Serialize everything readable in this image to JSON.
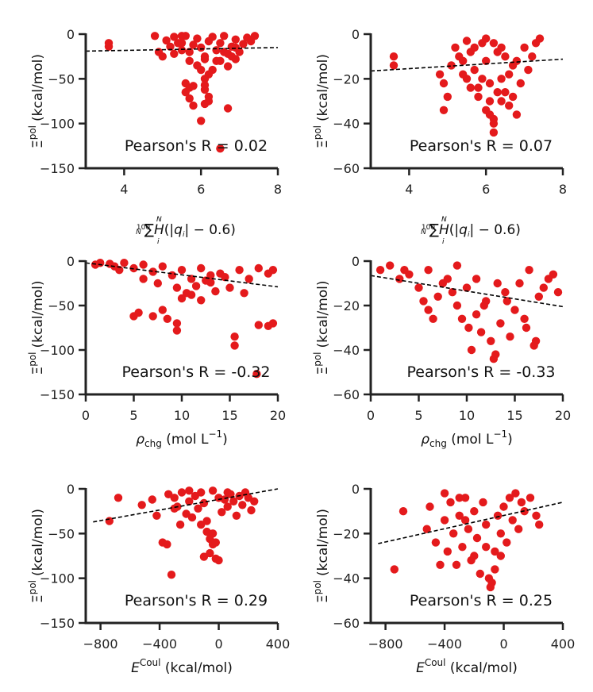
{
  "figure": {
    "ylabel": "Ξpol (kcal/mol)",
    "ylabel_main": "Ξ",
    "ylabel_sup": "pol",
    "ylabel_unit": "(kcal/mol)",
    "point_color": "#e41a1c",
    "trend_color": "#000000"
  },
  "chart_data": [
    {
      "type": "scatter",
      "panel": "row1-left",
      "xlim": [
        3,
        8
      ],
      "ylim": [
        -150,
        0
      ],
      "xticks": [
        4,
        6,
        8
      ],
      "yticks": [
        0,
        -50,
        -100,
        -150
      ],
      "xlabel": "100/N Σ_i^N H(|q_i| − 0.6)",
      "xlabel_type": "heaviside",
      "ylabel": "Ξpol (kcal/mol)",
      "annotation": "Pearson's R = 0.02",
      "trend": [
        [
          3,
          -19
        ],
        [
          8,
          -15
        ]
      ],
      "points": [
        [
          3.6,
          -10
        ],
        [
          3.6,
          -14
        ],
        [
          4.8,
          -2
        ],
        [
          4.9,
          -20
        ],
        [
          5.0,
          -25
        ],
        [
          5.1,
          -7
        ],
        [
          5.2,
          -14
        ],
        [
          5.3,
          -3
        ],
        [
          5.4,
          -10
        ],
        [
          5.5,
          -18
        ],
        [
          5.6,
          -2
        ],
        [
          5.7,
          -20
        ],
        [
          5.8,
          -12
        ],
        [
          5.9,
          -5
        ],
        [
          6.0,
          -15
        ],
        [
          6.1,
          -25
        ],
        [
          6.2,
          -8
        ],
        [
          6.3,
          -3
        ],
        [
          6.4,
          -18
        ],
        [
          6.5,
          -10
        ],
        [
          6.6,
          -2
        ],
        [
          6.7,
          -22
        ],
        [
          6.8,
          -14
        ],
        [
          6.9,
          -6
        ],
        [
          7.0,
          -20
        ],
        [
          7.1,
          -11
        ],
        [
          7.2,
          -4
        ],
        [
          7.3,
          -8
        ],
        [
          7.4,
          -2
        ],
        [
          5.5,
          -2
        ],
        [
          5.7,
          -30
        ],
        [
          5.9,
          -35
        ],
        [
          6.1,
          -28
        ],
        [
          6.3,
          -40
        ],
        [
          6.5,
          -30
        ],
        [
          6.7,
          -36
        ],
        [
          6.9,
          -28
        ],
        [
          6.4,
          -30
        ],
        [
          5.6,
          -55
        ],
        [
          5.7,
          -60
        ],
        [
          5.8,
          -58
        ],
        [
          5.6,
          -65
        ],
        [
          5.7,
          -72
        ],
        [
          5.8,
          -80
        ],
        [
          6.1,
          -50
        ],
        [
          6.1,
          -57
        ],
        [
          6.1,
          -62
        ],
        [
          6.2,
          -70
        ],
        [
          6.2,
          -75
        ],
        [
          6.1,
          -78
        ],
        [
          6.7,
          -83
        ],
        [
          6.0,
          -97
        ],
        [
          6.5,
          -128
        ],
        [
          5.5,
          -10
        ],
        [
          6.6,
          -20
        ],
        [
          6.8,
          -25
        ],
        [
          6.2,
          -45
        ],
        [
          6.0,
          -40
        ],
        [
          5.3,
          -22
        ],
        [
          6.9,
          -15
        ]
      ]
    },
    {
      "type": "scatter",
      "panel": "row1-right",
      "xlim": [
        3,
        8
      ],
      "ylim": [
        -60,
        0
      ],
      "xticks": [
        4,
        6,
        8
      ],
      "yticks": [
        0,
        -20,
        -40,
        -60
      ],
      "xlabel": "100/N Σ_i^N H(|q_i| − 0.6)",
      "xlabel_type": "heaviside",
      "ylabel": "Ξpol (kcal/mol)",
      "annotation": "Pearson's R = 0.07",
      "trend": [
        [
          3,
          -16.5
        ],
        [
          8,
          -11.2
        ]
      ],
      "points": [
        [
          3.6,
          -10
        ],
        [
          3.6,
          -14
        ],
        [
          4.8,
          -18
        ],
        [
          4.9,
          -22
        ],
        [
          4.9,
          -34
        ],
        [
          5.0,
          -28
        ],
        [
          5.1,
          -14
        ],
        [
          5.2,
          -6
        ],
        [
          5.3,
          -10
        ],
        [
          5.4,
          -12
        ],
        [
          5.5,
          -3
        ],
        [
          5.5,
          -20
        ],
        [
          5.6,
          -8
        ],
        [
          5.7,
          -16
        ],
        [
          5.8,
          -24
        ],
        [
          5.9,
          -4
        ],
        [
          6.0,
          -12
        ],
        [
          6.1,
          -30
        ],
        [
          6.1,
          -36
        ],
        [
          6.2,
          -40
        ],
        [
          6.2,
          -44
        ],
        [
          6.3,
          -8
        ],
        [
          6.4,
          -20
        ],
        [
          6.5,
          -26
        ],
        [
          6.6,
          -32
        ],
        [
          6.7,
          -14
        ],
        [
          6.8,
          -36
        ],
        [
          6.9,
          -22
        ],
        [
          7.0,
          -6
        ],
        [
          7.1,
          -16
        ],
        [
          7.2,
          -10
        ],
        [
          7.3,
          -4
        ],
        [
          7.4,
          -2
        ],
        [
          5.4,
          -18
        ],
        [
          5.6,
          -24
        ],
        [
          5.8,
          -28
        ],
        [
          6.0,
          -34
        ],
        [
          6.2,
          -38
        ],
        [
          6.4,
          -30
        ],
        [
          6.6,
          -18
        ],
        [
          6.8,
          -12
        ],
        [
          5.9,
          -20
        ],
        [
          6.1,
          -22
        ],
        [
          6.3,
          -26
        ],
        [
          6.5,
          -10
        ],
        [
          6.7,
          -28
        ],
        [
          5.7,
          -6
        ],
        [
          6.0,
          -2
        ],
        [
          6.2,
          -4
        ],
        [
          6.4,
          -6
        ]
      ]
    },
    {
      "type": "scatter",
      "panel": "row2-left",
      "xlim": [
        0,
        20
      ],
      "ylim": [
        -150,
        0
      ],
      "xticks": [
        0,
        5,
        10,
        15,
        20
      ],
      "yticks": [
        0,
        -50,
        -100,
        -150
      ],
      "xlabel": "ρchg (mol L−1)",
      "xlabel_type": "rho",
      "ylabel": "Ξpol (kcal/mol)",
      "annotation": "Pearson's R = -0.32",
      "trend": [
        [
          0,
          -2
        ],
        [
          20,
          -29
        ]
      ],
      "points": [
        [
          1.0,
          -4
        ],
        [
          1.5,
          -2
        ],
        [
          2.5,
          -3
        ],
        [
          3.0,
          -6
        ],
        [
          4.0,
          -2
        ],
        [
          5.0,
          -8
        ],
        [
          6.0,
          -4
        ],
        [
          7.0,
          -12
        ],
        [
          8.0,
          -6
        ],
        [
          9.0,
          -16
        ],
        [
          10.0,
          -10
        ],
        [
          11.0,
          -20
        ],
        [
          12.0,
          -8
        ],
        [
          13.0,
          -24
        ],
        [
          14.0,
          -14
        ],
        [
          15.0,
          -30
        ],
        [
          16.0,
          -10
        ],
        [
          17.0,
          -20
        ],
        [
          18.0,
          -8
        ],
        [
          19.0,
          -14
        ],
        [
          19.5,
          -10
        ],
        [
          9.5,
          -30
        ],
        [
          10.5,
          -36
        ],
        [
          11.5,
          -28
        ],
        [
          12.5,
          -22
        ],
        [
          13.5,
          -34
        ],
        [
          14.5,
          -18
        ],
        [
          16.5,
          -36
        ],
        [
          5.0,
          -62
        ],
        [
          5.5,
          -58
        ],
        [
          7.0,
          -62
        ],
        [
          8.0,
          -55
        ],
        [
          8.5,
          -65
        ],
        [
          9.5,
          -70
        ],
        [
          9.5,
          -78
        ],
        [
          15.5,
          -85
        ],
        [
          15.5,
          -95
        ],
        [
          18.0,
          -72
        ],
        [
          19.0,
          -73
        ],
        [
          19.5,
          -70
        ],
        [
          17.8,
          -127
        ],
        [
          10.0,
          -42
        ],
        [
          11.0,
          -38
        ],
        [
          6.0,
          -20
        ],
        [
          7.5,
          -25
        ],
        [
          12.0,
          -44
        ],
        [
          13.0,
          -16
        ],
        [
          3.5,
          -10
        ]
      ]
    },
    {
      "type": "scatter",
      "panel": "row2-right",
      "xlim": [
        0,
        20
      ],
      "ylim": [
        -60,
        0
      ],
      "xticks": [
        0,
        5,
        10,
        15,
        20
      ],
      "yticks": [
        0,
        -20,
        -40,
        -60
      ],
      "xlabel": "ρchg (mol L−1)",
      "xlabel_type": "rho",
      "ylabel": "Ξpol (kcal/mol)",
      "annotation": "Pearson's R = -0.33",
      "trend": [
        [
          0,
          -6.5
        ],
        [
          20,
          -20.5
        ]
      ],
      "points": [
        [
          1.0,
          -4
        ],
        [
          2.0,
          -2
        ],
        [
          3.0,
          -8
        ],
        [
          4.0,
          -6
        ],
        [
          5.0,
          -12
        ],
        [
          6.0,
          -4
        ],
        [
          6.5,
          -26
        ],
        [
          7.0,
          -16
        ],
        [
          8.0,
          -8
        ],
        [
          9.0,
          -20
        ],
        [
          10.0,
          -12
        ],
        [
          10.5,
          -40
        ],
        [
          11.0,
          -24
        ],
        [
          11.5,
          -32
        ],
        [
          12.0,
          -18
        ],
        [
          12.5,
          -36
        ],
        [
          12.8,
          -44
        ],
        [
          13.0,
          -42
        ],
        [
          13.5,
          -28
        ],
        [
          14.0,
          -14
        ],
        [
          14.5,
          -34
        ],
        [
          15.0,
          -22
        ],
        [
          15.5,
          -10
        ],
        [
          16.0,
          -26
        ],
        [
          16.5,
          -4
        ],
        [
          17.0,
          -38
        ],
        [
          17.2,
          -36
        ],
        [
          17.5,
          -16
        ],
        [
          18.0,
          -12
        ],
        [
          18.5,
          -8
        ],
        [
          19.0,
          -6
        ],
        [
          19.5,
          -14
        ],
        [
          8.5,
          -14
        ],
        [
          9.5,
          -26
        ],
        [
          10.2,
          -30
        ],
        [
          11.8,
          -20
        ],
        [
          13.2,
          -10
        ],
        [
          5.5,
          -18
        ],
        [
          7.5,
          -10
        ],
        [
          3.5,
          -4
        ],
        [
          6.0,
          -22
        ],
        [
          9.0,
          -2
        ],
        [
          14.2,
          -18
        ],
        [
          16.2,
          -30
        ],
        [
          11.0,
          -8
        ]
      ]
    },
    {
      "type": "scatter",
      "panel": "row3-left",
      "xlim": [
        -900,
        400
      ],
      "ylim": [
        -150,
        0
      ],
      "xticks": [
        -800,
        -400,
        0,
        400
      ],
      "yticks": [
        0,
        -50,
        -100,
        -150
      ],
      "xlabel": "ECoul (kcal/mol)",
      "xlabel_type": "ecoul",
      "ylabel": "Ξpol (kcal/mol)",
      "annotation": "Pearson's R = 0.29",
      "trend": [
        [
          -850,
          -37
        ],
        [
          400,
          0
        ]
      ],
      "points": [
        [
          -740,
          -36
        ],
        [
          -680,
          -10
        ],
        [
          -520,
          -18
        ],
        [
          -450,
          -12
        ],
        [
          -420,
          -30
        ],
        [
          -380,
          -60
        ],
        [
          -350,
          -62
        ],
        [
          -320,
          -96
        ],
        [
          -300,
          -10
        ],
        [
          -280,
          -20
        ],
        [
          -250,
          -4
        ],
        [
          -220,
          -28
        ],
        [
          -200,
          -14
        ],
        [
          -180,
          -32
        ],
        [
          -160,
          -8
        ],
        [
          -140,
          -22
        ],
        [
          -120,
          -40
        ],
        [
          -100,
          -16
        ],
        [
          -80,
          -36
        ],
        [
          -60,
          -72
        ],
        [
          -40,
          -62
        ],
        [
          -20,
          -78
        ],
        [
          0,
          -80
        ],
        [
          20,
          -26
        ],
        [
          40,
          -12
        ],
        [
          60,
          -20
        ],
        [
          80,
          -6
        ],
        [
          100,
          -14
        ],
        [
          120,
          -30
        ],
        [
          140,
          -8
        ],
        [
          160,
          -18
        ],
        [
          180,
          -4
        ],
        [
          200,
          -10
        ],
        [
          220,
          -24
        ],
        [
          240,
          -14
        ],
        [
          -60,
          -56
        ],
        [
          -40,
          -50
        ],
        [
          -80,
          -48
        ],
        [
          -100,
          -76
        ],
        [
          -20,
          -60
        ],
        [
          -260,
          -40
        ],
        [
          -200,
          -2
        ],
        [
          -120,
          -4
        ],
        [
          -40,
          -2
        ],
        [
          0,
          -10
        ],
        [
          60,
          -4
        ],
        [
          -300,
          -22
        ],
        [
          -340,
          -6
        ]
      ]
    },
    {
      "type": "scatter",
      "panel": "row3-right",
      "xlim": [
        -900,
        400
      ],
      "ylim": [
        -60,
        0
      ],
      "xticks": [
        -800,
        -400,
        0,
        400
      ],
      "yticks": [
        0,
        -20,
        -40,
        -60
      ],
      "xlabel": "ECoul (kcal/mol)",
      "xlabel_type": "ecoul",
      "ylabel": "Ξpol (kcal/mol)",
      "annotation": "Pearson's R = 0.25",
      "trend": [
        [
          -850,
          -24.5
        ],
        [
          400,
          -6
        ]
      ],
      "points": [
        [
          -740,
          -36
        ],
        [
          -680,
          -10
        ],
        [
          -520,
          -18
        ],
        [
          -460,
          -24
        ],
        [
          -430,
          -34
        ],
        [
          -400,
          -14
        ],
        [
          -380,
          -28
        ],
        [
          -360,
          -6
        ],
        [
          -340,
          -20
        ],
        [
          -320,
          -34
        ],
        [
          -300,
          -12
        ],
        [
          -280,
          -26
        ],
        [
          -260,
          -4
        ],
        [
          -240,
          -18
        ],
        [
          -220,
          -32
        ],
        [
          -200,
          -10
        ],
        [
          -180,
          -22
        ],
        [
          -160,
          -38
        ],
        [
          -140,
          -6
        ],
        [
          -120,
          -16
        ],
        [
          -100,
          -40
        ],
        [
          -90,
          -44
        ],
        [
          -80,
          -42
        ],
        [
          -60,
          -28
        ],
        [
          -40,
          -12
        ],
        [
          -20,
          -20
        ],
        [
          0,
          -8
        ],
        [
          20,
          -24
        ],
        [
          40,
          -4
        ],
        [
          60,
          -14
        ],
        [
          80,
          -2
        ],
        [
          100,
          -18
        ],
        [
          120,
          -6
        ],
        [
          140,
          -10
        ],
        [
          180,
          -4
        ],
        [
          220,
          -12
        ],
        [
          240,
          -16
        ],
        [
          -300,
          -4
        ],
        [
          -400,
          -2
        ],
        [
          -200,
          -30
        ],
        [
          -120,
          -26
        ],
        [
          -60,
          -36
        ],
        [
          -20,
          -30
        ],
        [
          -500,
          -8
        ],
        [
          -260,
          -14
        ]
      ]
    }
  ]
}
